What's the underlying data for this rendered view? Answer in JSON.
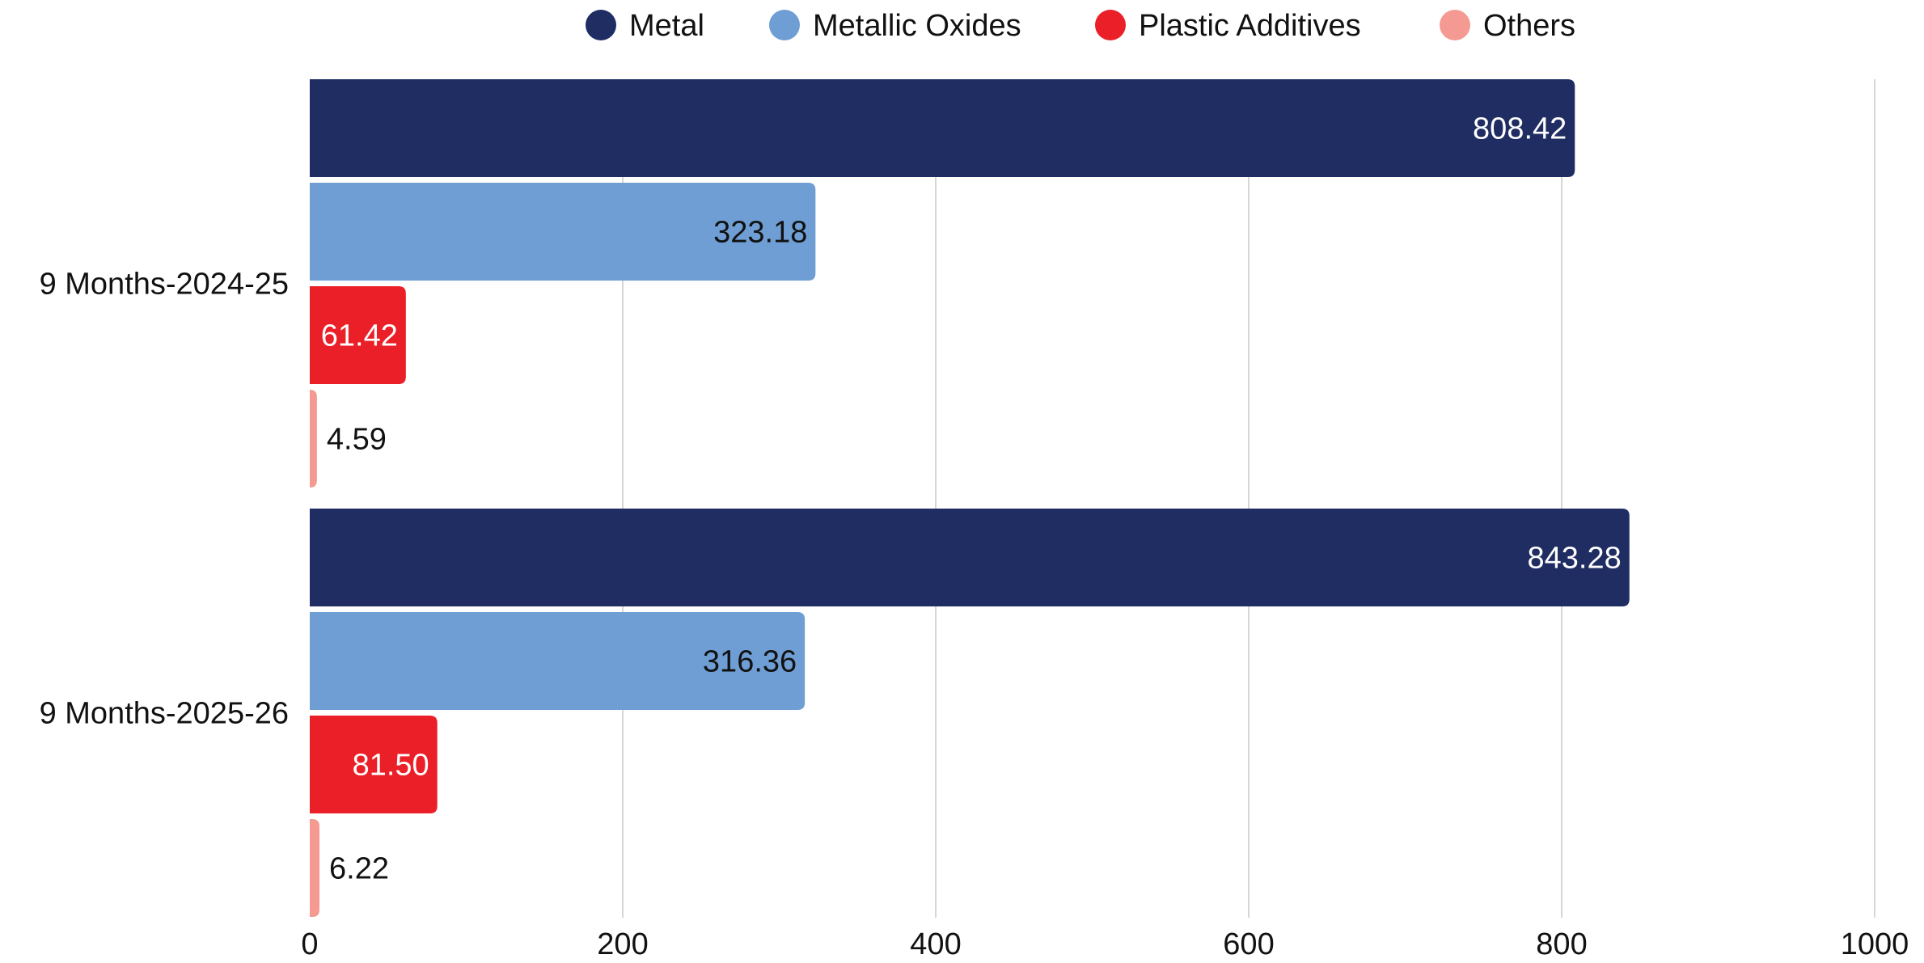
{
  "chart_data": {
    "type": "bar",
    "orientation": "horizontal",
    "categories": [
      "9 Months-2024-25",
      "9 Months-2025-26"
    ],
    "series": [
      {
        "name": "Metal",
        "color": "#1f2d62",
        "values": [
          808.42,
          843.28
        ],
        "labels": [
          "808.42",
          "843.28"
        ],
        "label_color": "#ffffff"
      },
      {
        "name": "Metallic Oxides",
        "color": "#6e9ed4",
        "values": [
          323.18,
          316.36
        ],
        "labels": [
          "323.18",
          "316.36"
        ],
        "label_color": "#111111"
      },
      {
        "name": "Plastic Additives",
        "color": "#ea1f27",
        "values": [
          61.42,
          81.5
        ],
        "labels": [
          "61.42",
          "81.50"
        ],
        "label_color": "#ffffff"
      },
      {
        "name": "Others",
        "color": "#f59a92",
        "values": [
          4.59,
          6.22
        ],
        "labels": [
          "4.59",
          "6.22"
        ],
        "label_color": "#111111"
      }
    ],
    "xlim": [
      0,
      1000
    ],
    "xticks": [
      "0",
      "200",
      "400",
      "600",
      "800",
      "1000"
    ],
    "xtick_values": [
      0,
      200,
      400,
      600,
      800,
      1000
    ],
    "title": "",
    "xlabel": "",
    "ylabel": "",
    "grid": true,
    "legend_position": "top-center"
  }
}
